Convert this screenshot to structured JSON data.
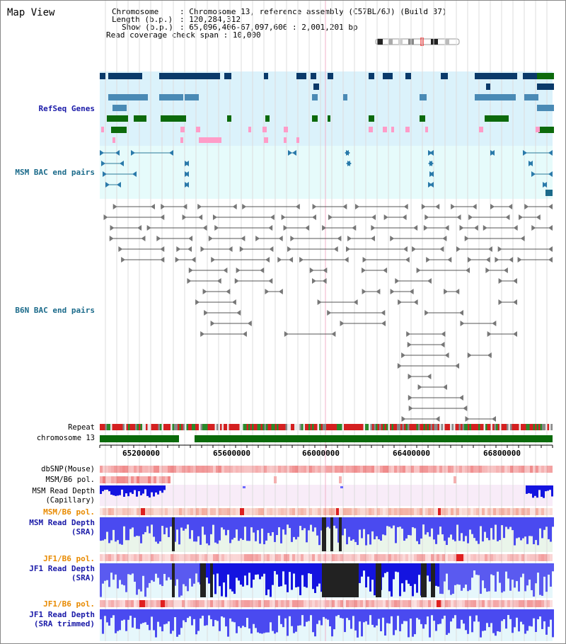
{
  "page": {
    "title": "Map View"
  },
  "header": {
    "chromosome_key": "Chromosome",
    "chromosome_value": "Chromosome 13, reference assembly (C57BL/6J) (Build 37)",
    "length_key": "Length (b.p.)",
    "length_value": "120,284,312",
    "show_key": "Show (b.p.)",
    "show_value": "65,096,406-67,097,606 : 2,001,201 bp",
    "coverage_key": "Read coverage check span",
    "coverage_value": "10,000"
  },
  "tracks": {
    "refseq": "RefSeq Genes",
    "msm_bac": "MSM BAC end pairs",
    "b6n_bac": "B6N BAC end pairs",
    "repeat": "Repeat",
    "chromosome": "chromosome 13",
    "dbsnp": "dbSNP(Mouse)",
    "msm_b6_pol_1": "MSM/B6 pol.",
    "msm_read_depth_cap_1": "MSM Read Depth",
    "msm_read_depth_cap_2": "(Capillary)",
    "msm_b6_pol_2": "MSM/B6 pol.",
    "msm_read_depth_sra_1": "MSM Read Depth",
    "msm_read_depth_sra_2": "(SRA)",
    "jf1_b6_pol_1": "JF1/B6 pol.",
    "jf1_read_depth_sra_1": "JF1 Read Depth",
    "jf1_read_depth_sra_2": "(SRA)",
    "jf1_b6_pol_2": "JF1/B6 pol.",
    "jf1_read_depth_trim_1": "JF1 Read Depth",
    "jf1_read_depth_trim_2": "(SRA trimmed)"
  },
  "axis": {
    "ticks": [
      "65200000",
      "65600000",
      "66000000",
      "66400000",
      "66800000"
    ]
  },
  "colors": {
    "refseq_bg": "#dbf2fb",
    "msm_bac_bg": "#e6fbfb",
    "navy": "#0a3a6a",
    "steel": "#4a8ab5",
    "green": "#0c6a0c",
    "pink": "#ff9cc8",
    "track_label_blue": "#1a1aa8",
    "track_label_orange": "#e88a00",
    "teal_label": "#1a6a8a",
    "bar_blue": "#1414e0",
    "bar_black": "#222222"
  }
}
